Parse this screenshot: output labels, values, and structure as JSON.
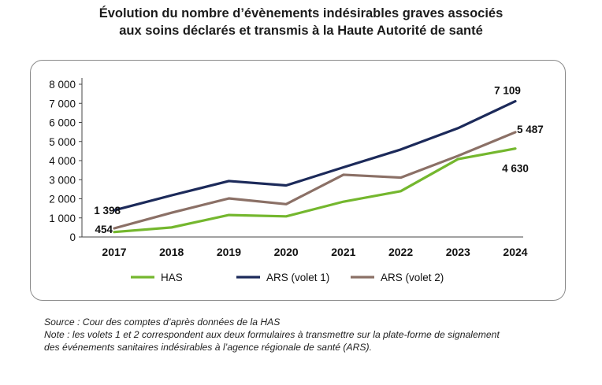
{
  "title": {
    "line1": "Évolution du nombre d’évènements indésirables graves associés",
    "line2": "aux soins déclarés et transmis à la Haute Autorité de santé"
  },
  "footer": {
    "source": "Source : Cour des comptes d’après données de la HAS",
    "note_line1": "Note : les volets 1 et 2 correspondent aux deux formulaires à transmettre sur la plate-forme de signalement",
    "note_line2": "des événements sanitaires indésirables à l’agence régionale de santé (ARS)."
  },
  "chart_data": {
    "type": "line",
    "title": "Évolution du nombre d’évènements indésirables graves associés aux soins déclarés et transmis à la Haute Autorité de santé",
    "xlabel": "",
    "ylabel": "",
    "categories": [
      "2017",
      "2018",
      "2019",
      "2020",
      "2021",
      "2022",
      "2023",
      "2024"
    ],
    "ylim": [
      0,
      8000
    ],
    "yticks": [
      0,
      1000,
      2000,
      3000,
      4000,
      5000,
      6000,
      7000,
      8000
    ],
    "ytick_labels": [
      "0",
      "1 000",
      "2 000",
      "3 000",
      "4 000",
      "5 000",
      "6 000",
      "7 000",
      "8 000"
    ],
    "grid": false,
    "legend_position": "bottom",
    "series": [
      {
        "name": "HAS",
        "color": "#74b72e",
        "values": [
          260,
          500,
          1150,
          1080,
          1850,
          2400,
          4080,
          4630
        ]
      },
      {
        "name": "ARS (volet 1)",
        "color": "#1c2a5a",
        "values": [
          1398,
          2180,
          2930,
          2700,
          3650,
          4580,
          5700,
          7109
        ]
      },
      {
        "name": "ARS (volet 2)",
        "color": "#8b7066",
        "values": [
          454,
          1270,
          2020,
          1720,
          3260,
          3110,
          4250,
          5487
        ]
      }
    ],
    "annotations": [
      {
        "text": "1 398",
        "series": 1,
        "index": 0,
        "place": "left-above"
      },
      {
        "text": "454",
        "series": 2,
        "index": 0,
        "place": "left"
      },
      {
        "text": "7 109",
        "series": 1,
        "index": 7,
        "place": "above"
      },
      {
        "text": "5 487",
        "series": 2,
        "index": 7,
        "place": "right"
      },
      {
        "text": "4 630",
        "series": 0,
        "index": 7,
        "place": "below"
      }
    ]
  }
}
